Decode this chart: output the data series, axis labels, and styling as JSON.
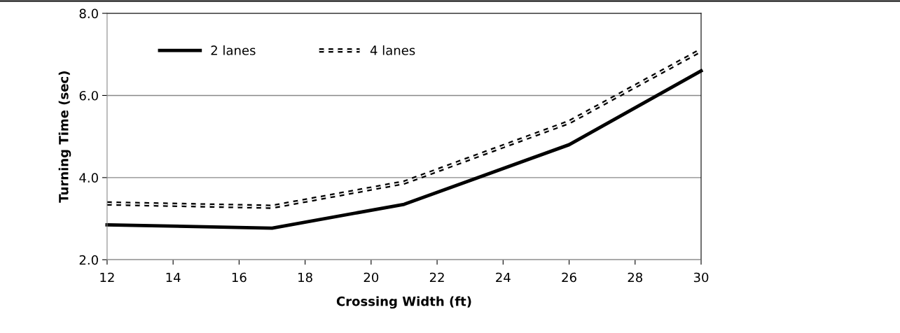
{
  "chart_data": {
    "type": "line",
    "xlabel": "Crossing Width (ft)",
    "ylabel": "Turning Time (sec)",
    "x": [
      12,
      17,
      21,
      26,
      30
    ],
    "series": [
      {
        "name": "2 lanes",
        "color": "#000000",
        "values": [
          2.85,
          2.77,
          3.35,
          4.8,
          6.6
        ],
        "line_style": "solid"
      },
      {
        "name": "4 lanes",
        "color": "#000000",
        "values": [
          3.37,
          3.29,
          3.88,
          5.35,
          7.1
        ],
        "line_style": "dashed"
      }
    ],
    "xlim": [
      12,
      30
    ],
    "xticks": [
      12,
      14,
      16,
      18,
      20,
      22,
      24,
      26,
      28,
      30
    ],
    "ylim": [
      2,
      8
    ],
    "yticks": [
      {
        "value": 2,
        "label": "2.0"
      },
      {
        "value": 4,
        "label": "4.0"
      },
      {
        "value": 6,
        "label": "6.0"
      },
      {
        "value": 8,
        "label": "8.0"
      }
    ],
    "grid": "y",
    "legend": "top left",
    "marker": "none"
  }
}
